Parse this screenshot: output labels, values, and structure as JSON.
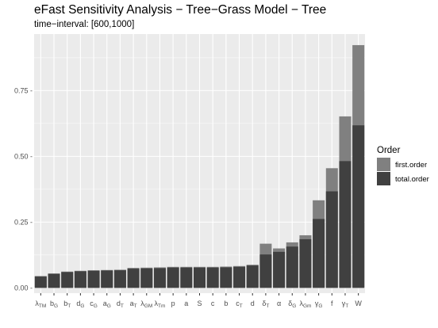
{
  "chart_data": {
    "type": "bar",
    "stacked": "overlay",
    "title": "eFast Sensitivity Analysis − Tree−Grass Model − Tree",
    "subtitle": "time−interval: [600,1000]",
    "xlabel": "",
    "ylabel": "",
    "ylim": [
      -0.02,
      0.965
    ],
    "yticks": [
      0.0,
      0.25,
      0.5,
      0.75
    ],
    "ytick_labels": [
      "0.00 -",
      "0.25 -",
      "0.50 -",
      "0.75 -"
    ],
    "grid": true,
    "legend": {
      "title": "Order",
      "position": "right"
    },
    "categories": [
      {
        "base": "λ",
        "sub": "TM"
      },
      {
        "base": "b",
        "sub": "G"
      },
      {
        "base": "b",
        "sub": "T"
      },
      {
        "base": "d",
        "sub": "G"
      },
      {
        "base": "c",
        "sub": "G"
      },
      {
        "base": "a",
        "sub": "G"
      },
      {
        "base": "d",
        "sub": "T"
      },
      {
        "base": "a",
        "sub": "T"
      },
      {
        "base": "λ",
        "sub": "GM"
      },
      {
        "base": "λ",
        "sub": "Tm"
      },
      {
        "base": "p",
        "sub": ""
      },
      {
        "base": "a",
        "sub": ""
      },
      {
        "base": "S",
        "sub": ""
      },
      {
        "base": "c",
        "sub": ""
      },
      {
        "base": "b",
        "sub": ""
      },
      {
        "base": "c",
        "sub": "T"
      },
      {
        "base": "d",
        "sub": ""
      },
      {
        "base": "δ",
        "sub": "T"
      },
      {
        "base": "α",
        "sub": ""
      },
      {
        "base": "δ",
        "sub": "G"
      },
      {
        "base": "λ",
        "sub": "Gm"
      },
      {
        "base": "γ",
        "sub": "G"
      },
      {
        "base": "f",
        "sub": ""
      },
      {
        "base": "γ",
        "sub": "T"
      },
      {
        "base": "W",
        "sub": ""
      }
    ],
    "series": [
      {
        "name": "first.order",
        "color": "#808080",
        "values": [
          0.045,
          0.055,
          0.062,
          0.065,
          0.067,
          0.068,
          0.069,
          0.076,
          0.077,
          0.078,
          0.08,
          0.08,
          0.08,
          0.08,
          0.081,
          0.083,
          0.088,
          0.168,
          0.15,
          0.173,
          0.2,
          0.333,
          0.455,
          0.652,
          0.923
        ]
      },
      {
        "name": "total.order",
        "color": "#404040",
        "values": [
          0.043,
          0.053,
          0.06,
          0.063,
          0.065,
          0.066,
          0.067,
          0.073,
          0.074,
          0.075,
          0.077,
          0.077,
          0.077,
          0.077,
          0.078,
          0.08,
          0.085,
          0.127,
          0.137,
          0.157,
          0.185,
          0.262,
          0.367,
          0.482,
          0.618
        ]
      }
    ]
  }
}
